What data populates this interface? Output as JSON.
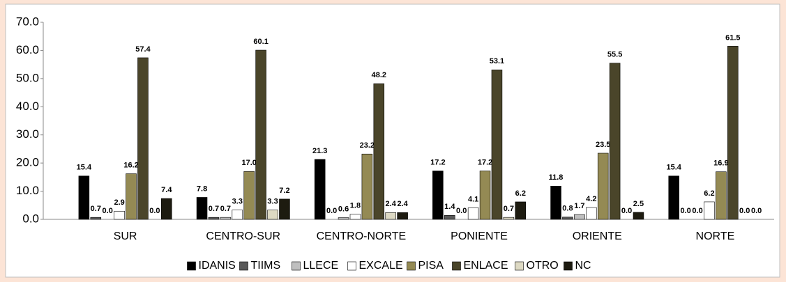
{
  "chart_data": {
    "type": "bar",
    "categories": [
      "SUR",
      "CENTRO-SUR",
      "CENTRO-NORTE",
      "PONIENTE",
      "ORIENTE",
      "NORTE"
    ],
    "series": [
      {
        "name": "IDANIS",
        "color": "#000000",
        "values": [
          15.4,
          7.8,
          21.3,
          17.2,
          11.8,
          15.4
        ],
        "value_labels": [
          "15.4",
          "7.8",
          "21.3",
          "17.2",
          "11.8",
          "15.4"
        ]
      },
      {
        "name": "TIIMS",
        "color": "#595959",
        "values": [
          0.7,
          0.7,
          0,
          1.4,
          0.8,
          0
        ],
        "value_labels": [
          "0.7",
          "0.7",
          "0.0",
          "1.4",
          "0.8",
          "0.0"
        ]
      },
      {
        "name": "LLECE",
        "color": "#bfbfbf",
        "values": [
          0,
          0.7,
          0.6,
          0,
          1.7,
          0
        ],
        "value_labels": [
          "0.0",
          "0.7",
          "0.6",
          "0.0",
          "1.7",
          "0.0"
        ]
      },
      {
        "name": "EXCALE",
        "color": "#ffffff",
        "values": [
          2.9,
          3.3,
          1.8,
          4.1,
          4.2,
          6.2
        ],
        "value_labels": [
          "2.9",
          "3.3",
          "1.8",
          "4.1",
          "4.2",
          "6.2"
        ]
      },
      {
        "name": "PISA",
        "color": "#948a54",
        "values": [
          16.2,
          17,
          23.2,
          17.2,
          23.5,
          16.9
        ],
        "value_labels": [
          "16.2",
          "17.0",
          "23.2",
          "17.2",
          "23.5",
          "16.9"
        ]
      },
      {
        "name": "ENLACE",
        "color": "#4a452a",
        "values": [
          57.4,
          60.1,
          48.2,
          53.1,
          55.5,
          61.5
        ],
        "value_labels": [
          "57.4",
          "60.1",
          "48.2",
          "53.1",
          "55.5",
          "61.5"
        ]
      },
      {
        "name": "OTRO",
        "color": "#ddd9c3",
        "values": [
          0,
          3.3,
          2.4,
          0.7,
          0,
          0
        ],
        "value_labels": [
          "0.0",
          "3.3",
          "2.4",
          "0.7",
          "0.0",
          "0.0"
        ]
      },
      {
        "name": "NC",
        "color": "#1d1b10",
        "values": [
          7.4,
          7.2,
          2.4,
          6.2,
          2.5,
          0
        ],
        "value_labels": [
          "7.4",
          "7.2",
          "2.4",
          "6.2",
          "2.5",
          "0.0"
        ]
      }
    ],
    "ylim": [
      0,
      70
    ],
    "yticks": [
      {
        "value": 0,
        "label": "0.0"
      },
      {
        "value": 10,
        "label": "10.0"
      },
      {
        "value": 20,
        "label": "20.0"
      },
      {
        "value": 30,
        "label": "30.0"
      },
      {
        "value": 40,
        "label": "40.0"
      },
      {
        "value": 50,
        "label": "50.0"
      },
      {
        "value": 60,
        "label": "60.0"
      },
      {
        "value": 70,
        "label": "70.0"
      }
    ],
    "legend": "bottom"
  }
}
